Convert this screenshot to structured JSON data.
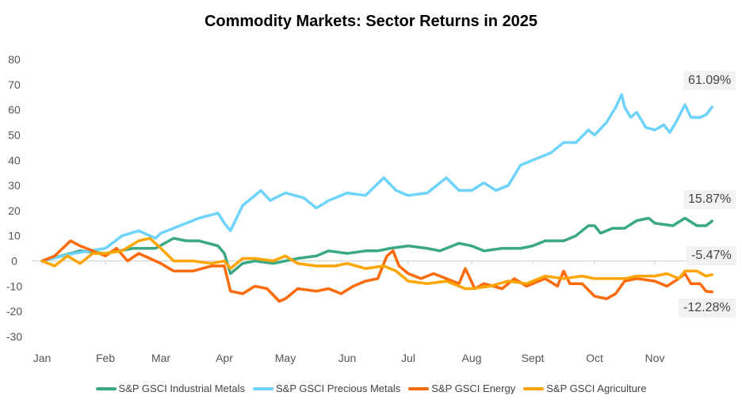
{
  "chart_data": {
    "type": "line",
    "title": "Commodity Markets: Sector Returns in 2025",
    "xlabel": "",
    "ylabel": "",
    "ylim": [
      -30,
      80
    ],
    "yticks": [
      "80",
      "70",
      "60",
      "50",
      "40",
      "30",
      "20",
      "10",
      "0",
      "-10",
      "-20",
      "-30"
    ],
    "xticks": [
      "Jan",
      "Feb",
      "Mar",
      "Apr",
      "May",
      "Jun",
      "Jul",
      "Aug",
      "Sept",
      "Oct",
      "Nov"
    ],
    "legend_position": "bottom",
    "series": [
      {
        "name": "S&P GSCI Industrial Metals",
        "color": "#3aa883",
        "end_label": "15.87%",
        "points": [
          [
            0,
            0
          ],
          [
            0.3,
            2
          ],
          [
            0.6,
            4
          ],
          [
            1,
            3
          ],
          [
            1.5,
            5
          ],
          [
            1.9,
            5
          ],
          [
            2.2,
            9
          ],
          [
            2.4,
            8
          ],
          [
            2.6,
            8
          ],
          [
            2.9,
            6
          ],
          [
            3,
            3
          ],
          [
            3.1,
            -5
          ],
          [
            3.3,
            -1
          ],
          [
            3.5,
            0
          ],
          [
            3.8,
            -1
          ],
          [
            4,
            0
          ],
          [
            4.2,
            1
          ],
          [
            4.5,
            2
          ],
          [
            4.7,
            4
          ],
          [
            5,
            3
          ],
          [
            5.3,
            4
          ],
          [
            5.5,
            4
          ],
          [
            5.7,
            5
          ],
          [
            6,
            6
          ],
          [
            6.3,
            5
          ],
          [
            6.5,
            4
          ],
          [
            6.8,
            7
          ],
          [
            7,
            6
          ],
          [
            7.2,
            4
          ],
          [
            7.5,
            5
          ],
          [
            7.8,
            5
          ],
          [
            8,
            6
          ],
          [
            8.2,
            8
          ],
          [
            8.5,
            8
          ],
          [
            8.7,
            10
          ],
          [
            8.9,
            14
          ],
          [
            9,
            14
          ],
          [
            9.1,
            11
          ],
          [
            9.3,
            13
          ],
          [
            9.5,
            13
          ],
          [
            9.7,
            16
          ],
          [
            9.9,
            17
          ],
          [
            10,
            15
          ],
          [
            10.3,
            14
          ],
          [
            10.5,
            17
          ],
          [
            10.7,
            14
          ],
          [
            10.85,
            14
          ],
          [
            10.95,
            15.87
          ]
        ]
      },
      {
        "name": "S&P GSCI Precious Metals",
        "color": "#6dd3fb",
        "end_label": "61.09%",
        "points": [
          [
            0,
            0
          ],
          [
            0.5,
            3
          ],
          [
            1,
            5
          ],
          [
            1.3,
            10
          ],
          [
            1.6,
            12
          ],
          [
            1.9,
            9
          ],
          [
            2,
            11
          ],
          [
            2.3,
            14
          ],
          [
            2.6,
            17
          ],
          [
            2.9,
            19
          ],
          [
            3,
            15
          ],
          [
            3.1,
            12
          ],
          [
            3.3,
            22
          ],
          [
            3.45,
            25
          ],
          [
            3.6,
            28
          ],
          [
            3.75,
            24
          ],
          [
            4,
            27
          ],
          [
            4.3,
            25
          ],
          [
            4.5,
            21
          ],
          [
            4.7,
            24
          ],
          [
            5,
            27
          ],
          [
            5.3,
            26
          ],
          [
            5.6,
            33
          ],
          [
            5.8,
            28
          ],
          [
            6,
            26
          ],
          [
            6.3,
            27
          ],
          [
            6.6,
            33
          ],
          [
            6.8,
            28
          ],
          [
            7,
            28
          ],
          [
            7.2,
            31
          ],
          [
            7.4,
            28
          ],
          [
            7.6,
            30
          ],
          [
            7.8,
            38
          ],
          [
            8,
            40
          ],
          [
            8.3,
            43
          ],
          [
            8.5,
            47
          ],
          [
            8.7,
            47
          ],
          [
            8.9,
            52
          ],
          [
            9,
            50
          ],
          [
            9.2,
            55
          ],
          [
            9.35,
            61
          ],
          [
            9.45,
            66
          ],
          [
            9.5,
            61
          ],
          [
            9.6,
            57
          ],
          [
            9.7,
            59
          ],
          [
            9.85,
            53
          ],
          [
            10,
            52
          ],
          [
            10.15,
            54
          ],
          [
            10.25,
            51
          ],
          [
            10.35,
            55
          ],
          [
            10.5,
            62
          ],
          [
            10.6,
            57
          ],
          [
            10.75,
            57
          ],
          [
            10.85,
            58
          ],
          [
            10.95,
            61.09
          ]
        ]
      },
      {
        "name": "S&P GSCI Energy",
        "color": "#fc6a0a",
        "end_label": "-12.28%",
        "points": [
          [
            0,
            0
          ],
          [
            0.2,
            2
          ],
          [
            0.45,
            8
          ],
          [
            0.6,
            6
          ],
          [
            0.8,
            4
          ],
          [
            1,
            2
          ],
          [
            1.2,
            5
          ],
          [
            1.4,
            0
          ],
          [
            1.6,
            3
          ],
          [
            1.8,
            1
          ],
          [
            2,
            -1
          ],
          [
            2.2,
            -4
          ],
          [
            2.5,
            -4
          ],
          [
            2.8,
            -2
          ],
          [
            3,
            -2
          ],
          [
            3.1,
            -12
          ],
          [
            3.3,
            -13
          ],
          [
            3.5,
            -10
          ],
          [
            3.7,
            -11
          ],
          [
            3.9,
            -16
          ],
          [
            4,
            -15
          ],
          [
            4.2,
            -11
          ],
          [
            4.5,
            -12
          ],
          [
            4.7,
            -11
          ],
          [
            4.9,
            -13
          ],
          [
            5.1,
            -10
          ],
          [
            5.3,
            -8
          ],
          [
            5.5,
            -7
          ],
          [
            5.65,
            2
          ],
          [
            5.75,
            4
          ],
          [
            5.85,
            -2
          ],
          [
            6,
            -5
          ],
          [
            6.2,
            -7
          ],
          [
            6.4,
            -5
          ],
          [
            6.6,
            -7
          ],
          [
            6.8,
            -9
          ],
          [
            6.9,
            -3
          ],
          [
            7.05,
            -11
          ],
          [
            7.2,
            -9
          ],
          [
            7.5,
            -11
          ],
          [
            7.7,
            -7
          ],
          [
            7.9,
            -10
          ],
          [
            8,
            -9
          ],
          [
            8.2,
            -7
          ],
          [
            8.4,
            -10
          ],
          [
            8.5,
            -4
          ],
          [
            8.6,
            -9
          ],
          [
            8.8,
            -9
          ],
          [
            9,
            -14
          ],
          [
            9.2,
            -15
          ],
          [
            9.35,
            -13
          ],
          [
            9.5,
            -8
          ],
          [
            9.7,
            -7
          ],
          [
            10,
            -8
          ],
          [
            10.2,
            -10
          ],
          [
            10.4,
            -7
          ],
          [
            10.5,
            -5
          ],
          [
            10.6,
            -9
          ],
          [
            10.75,
            -9
          ],
          [
            10.85,
            -12
          ],
          [
            10.95,
            -12.28
          ]
        ]
      },
      {
        "name": "S&P GSCI Agriculture",
        "color": "#ffa500",
        "end_label": "-5.47%",
        "points": [
          [
            0,
            0
          ],
          [
            0.2,
            -2
          ],
          [
            0.4,
            2
          ],
          [
            0.6,
            -1
          ],
          [
            0.8,
            3
          ],
          [
            1,
            3
          ],
          [
            1.3,
            4
          ],
          [
            1.6,
            8
          ],
          [
            1.8,
            9
          ],
          [
            2,
            5
          ],
          [
            2.2,
            0
          ],
          [
            2.5,
            0
          ],
          [
            2.8,
            -1
          ],
          [
            3,
            0
          ],
          [
            3.1,
            -3
          ],
          [
            3.3,
            1
          ],
          [
            3.5,
            1
          ],
          [
            3.8,
            0
          ],
          [
            4,
            2
          ],
          [
            4.2,
            -1
          ],
          [
            4.5,
            -2
          ],
          [
            4.8,
            -2
          ],
          [
            5,
            -1
          ],
          [
            5.3,
            -3
          ],
          [
            5.6,
            -2
          ],
          [
            5.8,
            -4
          ],
          [
            6,
            -8
          ],
          [
            6.3,
            -9
          ],
          [
            6.6,
            -8
          ],
          [
            6.9,
            -11
          ],
          [
            7,
            -11
          ],
          [
            7.3,
            -10
          ],
          [
            7.6,
            -8
          ],
          [
            7.9,
            -9
          ],
          [
            8.2,
            -6
          ],
          [
            8.5,
            -7
          ],
          [
            8.8,
            -6
          ],
          [
            9,
            -7
          ],
          [
            9.3,
            -7
          ],
          [
            9.5,
            -7
          ],
          [
            9.7,
            -6
          ],
          [
            10,
            -6
          ],
          [
            10.2,
            -5
          ],
          [
            10.4,
            -7
          ],
          [
            10.5,
            -4
          ],
          [
            10.7,
            -4
          ],
          [
            10.85,
            -6
          ],
          [
            10.95,
            -5.47
          ]
        ]
      }
    ]
  }
}
